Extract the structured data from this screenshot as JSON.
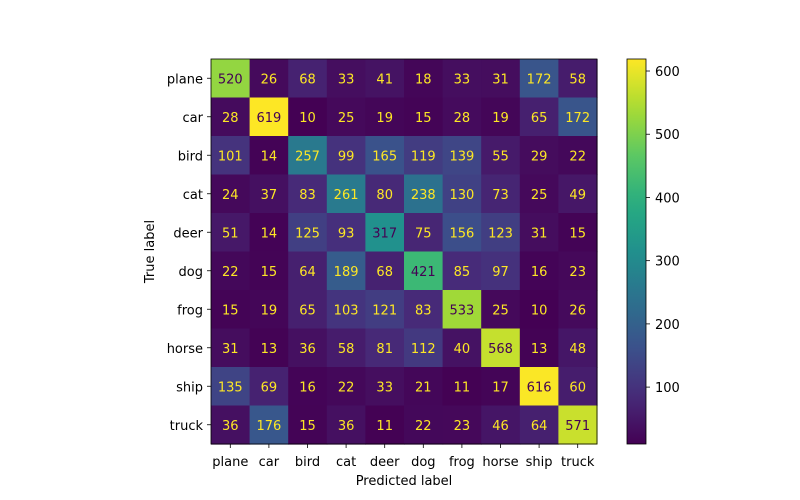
{
  "chart_data": {
    "type": "heatmap",
    "title": "",
    "xlabel": "Predicted label",
    "ylabel": "True label",
    "x_categories": [
      "plane",
      "car",
      "bird",
      "cat",
      "deer",
      "dog",
      "frog",
      "horse",
      "ship",
      "truck"
    ],
    "y_categories": [
      "plane",
      "car",
      "bird",
      "cat",
      "deer",
      "dog",
      "frog",
      "horse",
      "ship",
      "truck"
    ],
    "values": [
      [
        520,
        26,
        68,
        33,
        41,
        18,
        33,
        31,
        172,
        58
      ],
      [
        28,
        619,
        10,
        25,
        19,
        15,
        28,
        19,
        65,
        172
      ],
      [
        101,
        14,
        257,
        99,
        165,
        119,
        139,
        55,
        29,
        22
      ],
      [
        24,
        37,
        83,
        261,
        80,
        238,
        130,
        73,
        25,
        49
      ],
      [
        51,
        14,
        125,
        93,
        317,
        75,
        156,
        123,
        31,
        15
      ],
      [
        22,
        15,
        64,
        189,
        68,
        421,
        85,
        97,
        16,
        23
      ],
      [
        15,
        19,
        65,
        103,
        121,
        83,
        533,
        25,
        10,
        26
      ],
      [
        31,
        13,
        36,
        58,
        81,
        112,
        40,
        568,
        13,
        48
      ],
      [
        135,
        69,
        16,
        22,
        33,
        21,
        11,
        17,
        616,
        60
      ],
      [
        36,
        176,
        15,
        36,
        11,
        22,
        23,
        46,
        64,
        571
      ]
    ],
    "colormap": "viridis",
    "value_range": [
      10,
      619
    ],
    "colorbar_ticks": [
      100,
      200,
      300,
      400,
      500,
      600
    ],
    "label_color_light": "#fde725",
    "label_color_dark": "#440154",
    "grid": false
  }
}
